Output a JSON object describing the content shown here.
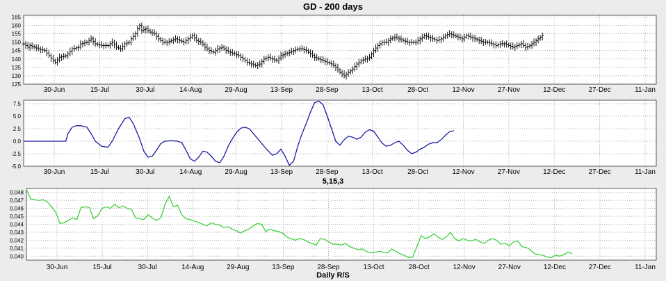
{
  "chart_data": [
    {
      "type": "ohlc",
      "title": "GD - 200 days",
      "ylim": [
        125,
        166
      ],
      "yticks": [
        125,
        130,
        135,
        140,
        145,
        150,
        155,
        160,
        165
      ],
      "x_labels": [
        "30-Jun",
        "15-Jul",
        "30-Jul",
        "14-Aug",
        "29-Aug",
        "13-Sep",
        "28-Sep",
        "13-Oct",
        "28-Oct",
        "12-Nov",
        "27-Nov",
        "12-Dec",
        "27-Dec",
        "11-Jan"
      ],
      "grid": true,
      "close_path": [
        [
          0,
          149
        ],
        [
          2,
          147
        ],
        [
          3,
          148
        ],
        [
          5,
          147
        ],
        [
          7,
          146
        ],
        [
          10,
          145
        ],
        [
          12,
          142
        ],
        [
          14,
          139
        ],
        [
          15,
          138
        ],
        [
          17,
          141
        ],
        [
          20,
          142
        ],
        [
          21,
          143
        ],
        [
          23,
          146
        ],
        [
          26,
          147
        ],
        [
          27,
          149
        ],
        [
          30,
          150
        ],
        [
          32,
          152
        ],
        [
          34,
          149
        ],
        [
          37,
          148
        ],
        [
          40,
          148
        ],
        [
          42,
          150
        ],
        [
          44,
          147
        ],
        [
          46,
          146
        ],
        [
          48,
          149
        ],
        [
          50,
          150
        ],
        [
          51,
          152
        ],
        [
          53,
          155
        ],
        [
          54,
          158
        ],
        [
          55,
          160
        ],
        [
          56,
          157
        ],
        [
          58,
          158
        ],
        [
          60,
          156
        ],
        [
          62,
          155
        ],
        [
          64,
          152
        ],
        [
          66,
          150
        ],
        [
          68,
          150
        ],
        [
          70,
          151
        ],
        [
          72,
          152
        ],
        [
          74,
          151
        ],
        [
          76,
          150
        ],
        [
          78,
          152
        ],
        [
          80,
          154
        ],
        [
          82,
          151
        ],
        [
          84,
          150
        ],
        [
          86,
          147
        ],
        [
          88,
          145
        ],
        [
          90,
          144
        ],
        [
          92,
          146
        ],
        [
          94,
          147
        ],
        [
          96,
          145
        ],
        [
          98,
          144
        ],
        [
          100,
          143
        ],
        [
          102,
          142
        ],
        [
          104,
          140
        ],
        [
          106,
          138
        ],
        [
          108,
          137
        ],
        [
          110,
          136
        ],
        [
          112,
          137
        ],
        [
          114,
          140
        ],
        [
          116,
          141
        ],
        [
          118,
          140
        ],
        [
          120,
          139
        ],
        [
          122,
          142
        ],
        [
          124,
          143
        ],
        [
          126,
          144
        ],
        [
          128,
          145
        ],
        [
          130,
          146
        ],
        [
          132,
          146
        ],
        [
          134,
          145
        ],
        [
          136,
          143
        ],
        [
          138,
          141
        ],
        [
          140,
          140
        ],
        [
          142,
          139
        ],
        [
          144,
          138
        ],
        [
          146,
          137
        ],
        [
          148,
          135
        ],
        [
          150,
          132
        ],
        [
          151,
          131
        ],
        [
          152,
          130
        ],
        [
          154,
          132
        ],
        [
          156,
          134
        ],
        [
          158,
          137
        ],
        [
          160,
          139
        ],
        [
          162,
          140
        ],
        [
          164,
          141
        ],
        [
          166,
          145
        ],
        [
          168,
          148
        ],
        [
          170,
          150
        ],
        [
          172,
          150
        ],
        [
          174,
          152
        ],
        [
          176,
          153
        ],
        [
          178,
          152
        ],
        [
          180,
          151
        ],
        [
          182,
          150
        ],
        [
          184,
          150
        ],
        [
          186,
          150
        ],
        [
          188,
          152
        ],
        [
          190,
          154
        ],
        [
          192,
          153
        ],
        [
          194,
          152
        ],
        [
          196,
          151
        ],
        [
          198,
          152
        ],
        [
          200,
          154
        ],
        [
          202,
          155
        ],
        [
          204,
          154
        ],
        [
          206,
          153
        ],
        [
          208,
          152
        ],
        [
          210,
          154
        ],
        [
          212,
          153
        ],
        [
          214,
          152
        ],
        [
          216,
          151
        ],
        [
          218,
          150
        ],
        [
          220,
          150
        ],
        [
          222,
          149
        ],
        [
          224,
          148
        ],
        [
          226,
          149
        ],
        [
          228,
          149
        ],
        [
          230,
          148
        ],
        [
          232,
          147
        ],
        [
          234,
          148
        ],
        [
          236,
          149
        ],
        [
          238,
          147
        ],
        [
          240,
          148
        ],
        [
          242,
          150
        ],
        [
          244,
          152
        ],
        [
          246,
          154
        ]
      ]
    },
    {
      "type": "line",
      "title": "5,15,3",
      "ylim": [
        -5.0,
        8.2
      ],
      "yticks": [
        -5.0,
        -2.5,
        0.0,
        2.5,
        5.0,
        7.5
      ],
      "ytick_labels": [
        "-5.0",
        "-2.5",
        "0.0",
        "2.5",
        "5.0",
        "7.5"
      ],
      "x_labels": [
        "30-Jun",
        "15-Jul",
        "30-Jul",
        "14-Aug",
        "29-Aug",
        "13-Sep",
        "28-Sep",
        "13-Oct",
        "28-Oct",
        "12-Nov",
        "27-Nov",
        "12-Dec",
        "27-Dec",
        "11-Jan"
      ],
      "color": "#1a1aa0",
      "grid": true,
      "points": [
        [
          0,
          0
        ],
        [
          20,
          0
        ],
        [
          21,
          1.5
        ],
        [
          23,
          2.8
        ],
        [
          25,
          3.1
        ],
        [
          27,
          3.1
        ],
        [
          30,
          2.8
        ],
        [
          32,
          1.5
        ],
        [
          34,
          0
        ],
        [
          37,
          -1
        ],
        [
          40,
          -1.2
        ],
        [
          42,
          0
        ],
        [
          45,
          2.5
        ],
        [
          48,
          4.5
        ],
        [
          50,
          4.8
        ],
        [
          52,
          3.5
        ],
        [
          55,
          0.5
        ],
        [
          57,
          -2
        ],
        [
          59,
          -3.2
        ],
        [
          61,
          -3
        ],
        [
          63,
          -1.8
        ],
        [
          65,
          -0.5
        ],
        [
          67,
          0
        ],
        [
          70,
          0.1
        ],
        [
          73,
          0
        ],
        [
          75,
          -0.3
        ],
        [
          77,
          -1.8
        ],
        [
          79,
          -3.5
        ],
        [
          81,
          -4
        ],
        [
          83,
          -3.2
        ],
        [
          85,
          -2
        ],
        [
          87,
          -2.2
        ],
        [
          89,
          -3
        ],
        [
          91,
          -4
        ],
        [
          93,
          -4.3
        ],
        [
          95,
          -3
        ],
        [
          97,
          -1
        ],
        [
          99,
          0.5
        ],
        [
          101,
          1.8
        ],
        [
          103,
          2.6
        ],
        [
          105,
          2.8
        ],
        [
          107,
          2.5
        ],
        [
          109,
          1.5
        ],
        [
          112,
          0
        ],
        [
          115,
          -1.5
        ],
        [
          118,
          -2.8
        ],
        [
          120,
          -2.5
        ],
        [
          122,
          -1.6
        ],
        [
          124,
          -3
        ],
        [
          126,
          -4.8
        ],
        [
          128,
          -4
        ],
        [
          130,
          -1
        ],
        [
          132,
          1.5
        ],
        [
          134,
          3.5
        ],
        [
          136,
          5.8
        ],
        [
          138,
          7.7
        ],
        [
          140,
          8
        ],
        [
          142,
          7.3
        ],
        [
          144,
          5
        ],
        [
          146,
          2.5
        ],
        [
          148,
          0
        ],
        [
          150,
          -0.8
        ],
        [
          152,
          0.3
        ],
        [
          154,
          1
        ],
        [
          156,
          0.8
        ],
        [
          158,
          0.4
        ],
        [
          160,
          0.8
        ],
        [
          162,
          1.8
        ],
        [
          164,
          2.3
        ],
        [
          166,
          2
        ],
        [
          168,
          0.8
        ],
        [
          170,
          -0.4
        ],
        [
          172,
          -1
        ],
        [
          174,
          -0.8
        ],
        [
          176,
          -0.3
        ],
        [
          178,
          0
        ],
        [
          180,
          -0.8
        ],
        [
          182,
          -1.8
        ],
        [
          184,
          -2.5
        ],
        [
          186,
          -2.2
        ],
        [
          188,
          -1.6
        ],
        [
          190,
          -1.2
        ],
        [
          192,
          -0.6
        ],
        [
          194,
          -0.3
        ],
        [
          196,
          -0.3
        ],
        [
          198,
          0.3
        ],
        [
          200,
          1.2
        ],
        [
          202,
          1.9
        ],
        [
          204,
          2.1
        ]
      ]
    },
    {
      "type": "line",
      "title": "Daily R/S",
      "ylim": [
        0.0395,
        0.0485
      ],
      "yticks": [
        0.04,
        0.041,
        0.042,
        0.043,
        0.044,
        0.045,
        0.046,
        0.047,
        0.048
      ],
      "ytick_labels": [
        "0.040",
        "0.041",
        "0.042",
        "0.043",
        "0.044",
        "0.045",
        "0.046",
        "0.047",
        "0.048"
      ],
      "x_labels": [
        "30-Jun",
        "15-Jul",
        "30-Jul",
        "14-Aug",
        "29-Aug",
        "13-Sep",
        "28-Sep",
        "13-Oct",
        "28-Oct",
        "12-Nov",
        "27-Nov",
        "12-Dec",
        "27-Dec",
        "11-Jan"
      ],
      "color": "#3ed13e",
      "grid": true,
      "points": [
        [
          0,
          0.0484
        ],
        [
          2,
          0.0472
        ],
        [
          4,
          0.0471
        ],
        [
          6,
          0.047
        ],
        [
          8,
          0.0471
        ],
        [
          10,
          0.0468
        ],
        [
          12,
          0.0462
        ],
        [
          14,
          0.0455
        ],
        [
          16,
          0.0441
        ],
        [
          18,
          0.0442
        ],
        [
          20,
          0.0445
        ],
        [
          22,
          0.0448
        ],
        [
          24,
          0.0446
        ],
        [
          26,
          0.0461
        ],
        [
          28,
          0.0462
        ],
        [
          30,
          0.0461
        ],
        [
          32,
          0.0447
        ],
        [
          34,
          0.0451
        ],
        [
          36,
          0.046
        ],
        [
          38,
          0.0462
        ],
        [
          40,
          0.046
        ],
        [
          42,
          0.0465
        ],
        [
          44,
          0.0461
        ],
        [
          46,
          0.0463
        ],
        [
          48,
          0.046
        ],
        [
          50,
          0.0459
        ],
        [
          52,
          0.0448
        ],
        [
          54,
          0.0447
        ],
        [
          56,
          0.0446
        ],
        [
          58,
          0.0452
        ],
        [
          60,
          0.0448
        ],
        [
          62,
          0.0445
        ],
        [
          64,
          0.0448
        ],
        [
          66,
          0.0465
        ],
        [
          68,
          0.0475
        ],
        [
          70,
          0.0462
        ],
        [
          72,
          0.0464
        ],
        [
          74,
          0.0452
        ],
        [
          76,
          0.0447
        ],
        [
          78,
          0.0446
        ],
        [
          80,
          0.0444
        ],
        [
          82,
          0.0442
        ],
        [
          84,
          0.044
        ],
        [
          86,
          0.0438
        ],
        [
          88,
          0.0442
        ],
        [
          90,
          0.044
        ],
        [
          92,
          0.0439
        ],
        [
          94,
          0.0436
        ],
        [
          96,
          0.0437
        ],
        [
          98,
          0.0434
        ],
        [
          100,
          0.0432
        ],
        [
          102,
          0.0429
        ],
        [
          104,
          0.0432
        ],
        [
          106,
          0.0434
        ],
        [
          108,
          0.0438
        ],
        [
          110,
          0.0441
        ],
        [
          112,
          0.044
        ],
        [
          114,
          0.0431
        ],
        [
          116,
          0.0434
        ],
        [
          118,
          0.0432
        ],
        [
          120,
          0.0431
        ],
        [
          122,
          0.0429
        ],
        [
          124,
          0.0424
        ],
        [
          126,
          0.0422
        ],
        [
          128,
          0.042
        ],
        [
          130,
          0.0422
        ],
        [
          132,
          0.0421
        ],
        [
          134,
          0.0418
        ],
        [
          136,
          0.0416
        ],
        [
          138,
          0.0414
        ],
        [
          140,
          0.0422
        ],
        [
          142,
          0.0421
        ],
        [
          144,
          0.0418
        ],
        [
          146,
          0.0415
        ],
        [
          148,
          0.0415
        ],
        [
          150,
          0.0414
        ],
        [
          152,
          0.0416
        ],
        [
          154,
          0.0412
        ],
        [
          156,
          0.041
        ],
        [
          158,
          0.0408
        ],
        [
          160,
          0.0409
        ],
        [
          162,
          0.0406
        ],
        [
          164,
          0.0404
        ],
        [
          166,
          0.0405
        ],
        [
          168,
          0.0406
        ],
        [
          170,
          0.0405
        ],
        [
          172,
          0.0404
        ],
        [
          174,
          0.0409
        ],
        [
          176,
          0.0406
        ],
        [
          178,
          0.0403
        ],
        [
          180,
          0.0401
        ],
        [
          182,
          0.0398
        ],
        [
          184,
          0.0399
        ],
        [
          186,
          0.0412
        ],
        [
          188,
          0.0426
        ],
        [
          190,
          0.0422
        ],
        [
          192,
          0.0424
        ],
        [
          194,
          0.0428
        ],
        [
          196,
          0.0424
        ],
        [
          198,
          0.0421
        ],
        [
          200,
          0.0424
        ],
        [
          202,
          0.043
        ],
        [
          204,
          0.0422
        ],
        [
          206,
          0.0419
        ],
        [
          208,
          0.0422
        ],
        [
          210,
          0.042
        ],
        [
          212,
          0.0419
        ],
        [
          214,
          0.0421
        ],
        [
          216,
          0.0418
        ],
        [
          218,
          0.0416
        ],
        [
          220,
          0.042
        ],
        [
          222,
          0.0422
        ],
        [
          224,
          0.042
        ],
        [
          226,
          0.0415
        ],
        [
          228,
          0.0416
        ],
        [
          230,
          0.0413
        ],
        [
          232,
          0.0418
        ],
        [
          234,
          0.0419
        ],
        [
          236,
          0.0412
        ],
        [
          238,
          0.0411
        ],
        [
          240,
          0.0408
        ],
        [
          242,
          0.0403
        ],
        [
          244,
          0.0402
        ],
        [
          246,
          0.0401
        ],
        [
          248,
          0.0399
        ],
        [
          250,
          0.0398
        ],
        [
          252,
          0.0401
        ],
        [
          254,
          0.04
        ],
        [
          256,
          0.0402
        ],
        [
          258,
          0.0405
        ],
        [
          260,
          0.0403
        ]
      ]
    }
  ]
}
